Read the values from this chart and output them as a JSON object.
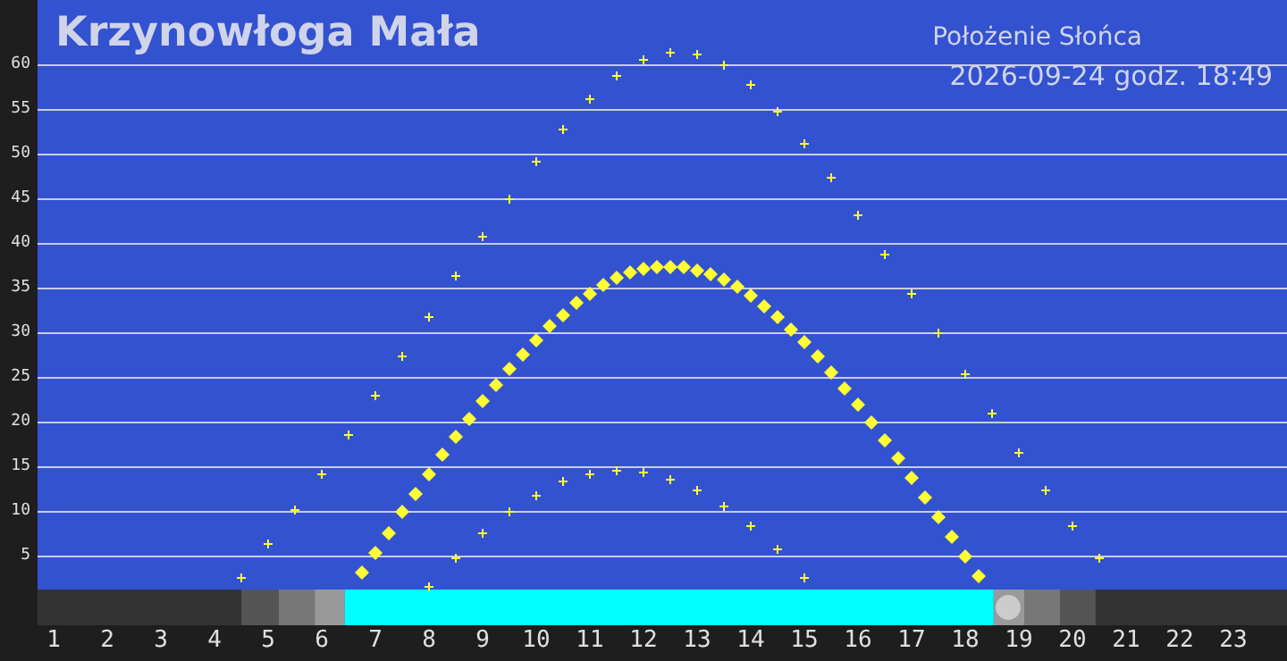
{
  "chart_data": {
    "type": "scatter",
    "title": "Krzynowłoga Mała",
    "subtitle": "Położenie Słońca",
    "annotations": [
      "2026-09-24 godz. 18:49"
    ],
    "xlim": [
      0.7,
      24
    ],
    "xticks": [
      1,
      2,
      3,
      4,
      5,
      6,
      7,
      8,
      9,
      10,
      11,
      12,
      13,
      14,
      15,
      16,
      17,
      18,
      19,
      20,
      21,
      22,
      23
    ],
    "ylim": [
      -2.8,
      67.2
    ],
    "yticks": [
      5,
      10,
      15,
      20,
      25,
      30,
      35,
      40,
      45,
      50,
      55,
      60
    ],
    "grid": "y",
    "series": [
      {
        "color": "#ffff33",
        "marker": "cross",
        "x": [
          4.5,
          5,
          5.5,
          6,
          6.5,
          7,
          7.5,
          8,
          8.5,
          9,
          9.5,
          10,
          10.5,
          11,
          11.5,
          12,
          12.5,
          13,
          13.5,
          14,
          14.5,
          15,
          15.5,
          16,
          16.5,
          17,
          17.5,
          18,
          18.5,
          19,
          19.5,
          20,
          20.5
        ],
        "values": [
          2.5,
          6.3,
          10.1,
          14.1,
          18.5,
          22.9,
          27.3,
          31.7,
          36.3,
          40.7,
          44.9,
          49.1,
          52.7,
          56.1,
          58.7,
          60.5,
          61.3,
          61.1,
          59.9,
          57.7,
          54.7,
          51.1,
          47.3,
          43.1,
          38.7,
          34.3,
          29.9,
          25.3,
          20.9,
          16.5,
          12.3,
          8.3,
          4.7
        ]
      },
      {
        "color": "#ffff33",
        "marker": "cross",
        "x": [
          8,
          8.5,
          9,
          9.5,
          10,
          10.5,
          11,
          11.5,
          12,
          12.5,
          13,
          13.5,
          14,
          14.5,
          15
        ],
        "values": [
          1.5,
          4.7,
          7.5,
          9.9,
          11.7,
          13.3,
          14.1,
          14.5,
          14.3,
          13.5,
          12.3,
          10.5,
          8.3,
          5.7,
          2.5
        ]
      },
      {
        "color": "#ffff33",
        "marker": "diamond",
        "x": [
          6.75,
          7,
          7.25,
          7.5,
          7.75,
          8,
          8.25,
          8.5,
          8.75,
          9,
          9.25,
          9.5,
          9.75,
          10,
          10.25,
          10.5,
          10.75,
          11,
          11.25,
          11.5,
          11.75,
          12,
          12.25,
          12.5,
          12.75,
          13,
          13.25,
          13.5,
          13.75,
          14,
          14.25,
          14.5,
          14.75,
          15,
          15.25,
          15.5,
          15.75,
          16,
          16.25,
          16.5,
          16.75,
          17,
          17.25,
          17.5,
          17.75,
          18,
          18.25
        ],
        "values": [
          3.1,
          5.3,
          7.5,
          9.9,
          11.9,
          14.1,
          16.3,
          18.3,
          20.3,
          22.3,
          24.1,
          25.9,
          27.5,
          29.1,
          30.7,
          31.9,
          33.3,
          34.3,
          35.3,
          36.1,
          36.7,
          37.1,
          37.3,
          37.3,
          37.3,
          36.9,
          36.5,
          35.9,
          35.1,
          34.1,
          32.9,
          31.7,
          30.3,
          28.9,
          27.3,
          25.5,
          23.7,
          21.9,
          19.9,
          17.9,
          15.9,
          13.7,
          11.5,
          9.3,
          7.1,
          4.9,
          2.7
        ]
      },
      {
        "color": "#cccccc",
        "marker": "circle",
        "x": [
          18.8
        ],
        "values": [
          -0.8
        ]
      }
    ],
    "bands": [
      {
        "axis": "x",
        "from": 0.7,
        "to": 4.5,
        "color": "#333333"
      },
      {
        "axis": "x",
        "from": 4.5,
        "to": 5.2,
        "color": "#555555"
      },
      {
        "axis": "x",
        "from": 5.2,
        "to": 5.87,
        "color": "#777777"
      },
      {
        "axis": "x",
        "from": 5.87,
        "to": 6.43,
        "color": "#999999"
      },
      {
        "axis": "x",
        "from": 6.43,
        "to": 18.53,
        "color": "#00ffff"
      },
      {
        "axis": "x",
        "from": 18.53,
        "to": 19.1,
        "color": "#999999"
      },
      {
        "axis": "x",
        "from": 19.1,
        "to": 19.77,
        "color": "#777777"
      },
      {
        "axis": "x",
        "from": 19.77,
        "to": 20.43,
        "color": "#555555"
      },
      {
        "axis": "x",
        "from": 20.43,
        "to": 24,
        "color": "#333333"
      }
    ]
  }
}
